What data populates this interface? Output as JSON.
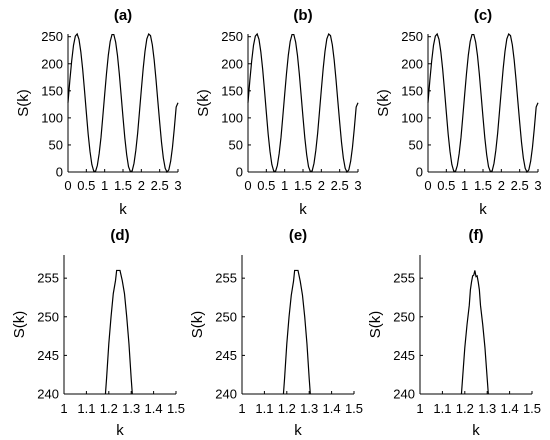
{
  "chart_data": [
    {
      "panel": "(a)",
      "type": "line",
      "title": "(a)",
      "xlabel": "k",
      "ylabel": "S(k)",
      "xlim": [
        0,
        3
      ],
      "ylim": [
        0,
        255
      ],
      "xticks": [
        0,
        0.5,
        1,
        1.5,
        2,
        2.5,
        3
      ],
      "xtick_labels": [
        "0",
        "0.5",
        "1",
        "1.5",
        "2",
        "2.5",
        "3"
      ],
      "yticks": [
        0,
        50,
        100,
        150,
        200,
        250
      ],
      "ytick_labels": [
        "0",
        "50",
        "100",
        "150",
        "200",
        "250"
      ],
      "grid": false,
      "series": [
        {
          "x": [
            0,
            0.05,
            0.1,
            0.15,
            0.2,
            0.25,
            0.3,
            0.35,
            0.4,
            0.45,
            0.5,
            0.55,
            0.6,
            0.65,
            0.7,
            0.75,
            0.8,
            0.85,
            0.9,
            0.95,
            1,
            1.05,
            1.1,
            1.15,
            1.2,
            1.25,
            1.3,
            1.35,
            1.4,
            1.45,
            1.5,
            1.55,
            1.6,
            1.65,
            1.7,
            1.75,
            1.8,
            1.85,
            1.9,
            1.95,
            2,
            2.05,
            2.1,
            2.15,
            2.2,
            2.25,
            2.3,
            2.35,
            2.4,
            2.45,
            2.5,
            2.55,
            2.6,
            2.65,
            2.7,
            2.75,
            2.8,
            2.85,
            2.9,
            2.95,
            3
          ],
          "y": [
            128,
            169,
            205,
            234,
            251,
            255,
            245,
            222,
            190,
            151,
            110,
            70,
            38,
            14,
            2,
            1,
            12,
            34,
            64,
            103,
            143,
            182,
            216,
            241,
            254,
            254,
            240,
            215,
            181,
            141,
            101,
            63,
            32,
            10,
            1,
            2,
            16,
            40,
            72,
            112,
            152,
            191,
            223,
            246,
            255,
            252,
            235,
            207,
            171,
            131,
            92,
            55,
            26,
            7,
            0,
            4,
            20,
            46,
            81,
            120,
            128
          ]
        }
      ]
    },
    {
      "panel": "(b)",
      "type": "line",
      "title": "(b)",
      "xlabel": "k",
      "ylabel": "S(k)",
      "xlim": [
        0,
        3
      ],
      "ylim": [
        0,
        255
      ],
      "xticks": [
        0,
        0.5,
        1,
        1.5,
        2,
        2.5,
        3
      ],
      "xtick_labels": [
        "0",
        "0.5",
        "1",
        "1.5",
        "2",
        "2.5",
        "3"
      ],
      "yticks": [
        0,
        50,
        100,
        150,
        200,
        250
      ],
      "ytick_labels": [
        "0",
        "50",
        "100",
        "150",
        "200",
        "250"
      ],
      "grid": false,
      "series": [
        {
          "x": [
            0,
            0.05,
            0.1,
            0.15,
            0.2,
            0.25,
            0.3,
            0.35,
            0.4,
            0.45,
            0.5,
            0.55,
            0.6,
            0.65,
            0.7,
            0.75,
            0.8,
            0.85,
            0.9,
            0.95,
            1,
            1.05,
            1.1,
            1.15,
            1.2,
            1.25,
            1.3,
            1.35,
            1.4,
            1.45,
            1.5,
            1.55,
            1.6,
            1.65,
            1.7,
            1.75,
            1.8,
            1.85,
            1.9,
            1.95,
            2,
            2.05,
            2.1,
            2.15,
            2.2,
            2.25,
            2.3,
            2.35,
            2.4,
            2.45,
            2.5,
            2.55,
            2.6,
            2.65,
            2.7,
            2.75,
            2.8,
            2.85,
            2.9,
            2.95,
            3
          ],
          "y": [
            128,
            169,
            205,
            234,
            251,
            255,
            245,
            222,
            190,
            151,
            110,
            70,
            38,
            14,
            2,
            1,
            12,
            34,
            64,
            103,
            143,
            182,
            216,
            241,
            254,
            254,
            240,
            215,
            181,
            141,
            101,
            63,
            32,
            10,
            1,
            2,
            16,
            40,
            72,
            112,
            152,
            191,
            223,
            246,
            255,
            252,
            235,
            207,
            171,
            131,
            92,
            55,
            26,
            7,
            0,
            4,
            20,
            46,
            81,
            120,
            128
          ]
        }
      ]
    },
    {
      "panel": "(c)",
      "type": "line",
      "title": "(c)",
      "xlabel": "k",
      "ylabel": "S(k)",
      "xlim": [
        0,
        3
      ],
      "ylim": [
        0,
        255
      ],
      "xticks": [
        0,
        0.5,
        1,
        1.5,
        2,
        2.5,
        3
      ],
      "xtick_labels": [
        "0",
        "0.5",
        "1",
        "1.5",
        "2",
        "2.5",
        "3"
      ],
      "yticks": [
        0,
        50,
        100,
        150,
        200,
        250
      ],
      "ytick_labels": [
        "0",
        "50",
        "100",
        "150",
        "200",
        "250"
      ],
      "grid": false,
      "series": [
        {
          "x": [
            0,
            0.05,
            0.1,
            0.15,
            0.2,
            0.25,
            0.3,
            0.35,
            0.4,
            0.45,
            0.5,
            0.55,
            0.6,
            0.65,
            0.7,
            0.75,
            0.8,
            0.85,
            0.9,
            0.95,
            1,
            1.05,
            1.1,
            1.15,
            1.2,
            1.25,
            1.3,
            1.35,
            1.4,
            1.45,
            1.5,
            1.55,
            1.6,
            1.65,
            1.7,
            1.75,
            1.8,
            1.85,
            1.9,
            1.95,
            2,
            2.05,
            2.1,
            2.15,
            2.2,
            2.25,
            2.3,
            2.35,
            2.4,
            2.45,
            2.5,
            2.55,
            2.6,
            2.65,
            2.7,
            2.75,
            2.8,
            2.85,
            2.9,
            2.95,
            3
          ],
          "y": [
            128,
            169,
            205,
            234,
            251,
            255,
            245,
            222,
            190,
            151,
            110,
            70,
            38,
            14,
            2,
            1,
            12,
            34,
            64,
            103,
            143,
            182,
            216,
            241,
            254,
            254,
            240,
            215,
            181,
            141,
            101,
            63,
            32,
            10,
            1,
            2,
            16,
            40,
            72,
            112,
            152,
            191,
            223,
            246,
            255,
            252,
            235,
            207,
            171,
            131,
            92,
            55,
            26,
            7,
            0,
            4,
            20,
            46,
            81,
            120,
            128
          ]
        }
      ]
    },
    {
      "panel": "(d)",
      "type": "line",
      "title": "(d)",
      "xlabel": "k",
      "ylabel": "S(k)",
      "xlim": [
        1,
        1.5
      ],
      "ylim": [
        240,
        258
      ],
      "xticks": [
        1,
        1.1,
        1.2,
        1.3,
        1.4,
        1.5
      ],
      "xtick_labels": [
        "1",
        "1.1",
        "1.2",
        "1.3",
        "1.4",
        "1.5"
      ],
      "yticks": [
        240,
        245,
        250,
        255
      ],
      "ytick_labels": [
        "240",
        "245",
        "250",
        "255"
      ],
      "grid": false,
      "series": [
        {
          "x": [
            1.185,
            1.19,
            1.2,
            1.21,
            1.22,
            1.23,
            1.235,
            1.245,
            1.25,
            1.26,
            1.27,
            1.28,
            1.29,
            1.3,
            1.305
          ],
          "y": [
            240,
            242,
            246.5,
            250,
            253,
            254.7,
            256,
            256,
            256,
            254.7,
            253,
            250,
            246.5,
            242,
            240
          ]
        }
      ]
    },
    {
      "panel": "(e)",
      "type": "line",
      "title": "(e)",
      "xlabel": "k",
      "ylabel": "S(k)",
      "xlim": [
        1,
        1.5
      ],
      "ylim": [
        240,
        258
      ],
      "xticks": [
        1,
        1.1,
        1.2,
        1.3,
        1.4,
        1.5
      ],
      "xtick_labels": [
        "1",
        "1.1",
        "1.2",
        "1.3",
        "1.4",
        "1.5"
      ],
      "yticks": [
        240,
        245,
        250,
        255
      ],
      "ytick_labels": [
        "240",
        "245",
        "250",
        "255"
      ],
      "grid": false,
      "series": [
        {
          "x": [
            1.185,
            1.19,
            1.2,
            1.21,
            1.22,
            1.23,
            1.235,
            1.245,
            1.25,
            1.26,
            1.27,
            1.28,
            1.29,
            1.3,
            1.305
          ],
          "y": [
            240,
            242,
            246.5,
            250,
            252.8,
            254.6,
            256,
            256,
            256,
            254.6,
            252.8,
            250,
            246.5,
            242,
            240
          ]
        }
      ]
    },
    {
      "panel": "(f)",
      "type": "line",
      "title": "(f)",
      "xlabel": "k",
      "ylabel": "S(k)",
      "xlim": [
        1,
        1.5
      ],
      "ylim": [
        240,
        258
      ],
      "xticks": [
        1,
        1.1,
        1.2,
        1.3,
        1.4,
        1.5
      ],
      "xtick_labels": [
        "1",
        "1.1",
        "1.2",
        "1.3",
        "1.4",
        "1.5"
      ],
      "yticks": [
        240,
        245,
        250,
        255
      ],
      "ytick_labels": [
        "240",
        "245",
        "250",
        "255"
      ],
      "grid": false,
      "series": [
        {
          "x": [
            1.185,
            1.19,
            1.2,
            1.21,
            1.22,
            1.225,
            1.23,
            1.235,
            1.24,
            1.245,
            1.25,
            1.255,
            1.26,
            1.265,
            1.27,
            1.28,
            1.29,
            1.3,
            1.305
          ],
          "y": [
            240,
            242,
            246,
            249,
            251.5,
            253.5,
            254.5,
            255.3,
            255.4,
            256,
            255.2,
            255.3,
            254.5,
            253.5,
            251.5,
            249,
            246,
            242,
            240
          ]
        }
      ]
    }
  ]
}
